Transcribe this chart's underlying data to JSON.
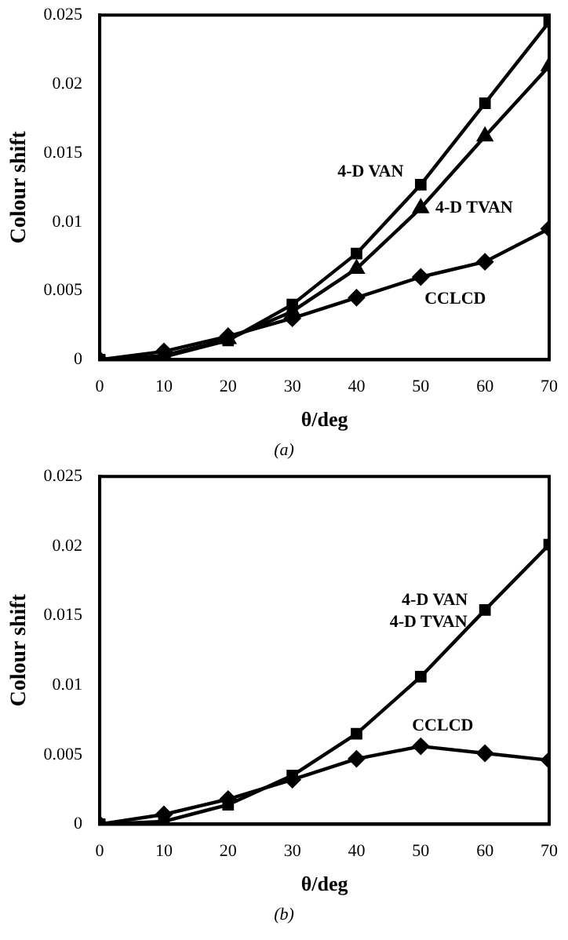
{
  "chart_data": [
    {
      "type": "line",
      "xlabel": "θ/deg",
      "ylabel": "Colour shift",
      "x": [
        0,
        10,
        20,
        30,
        40,
        50,
        60,
        70
      ],
      "xlim": [
        0,
        70
      ],
      "xticks": [
        0,
        10,
        20,
        30,
        40,
        50,
        60,
        70
      ],
      "ylim": [
        0,
        0.025
      ],
      "yticks": [
        0,
        0.005,
        0.01,
        0.015,
        0.02,
        0.025
      ],
      "grid": false,
      "legend": false,
      "series": [
        {
          "name": "4-D VAN",
          "color": "#000000",
          "marker": "square",
          "values": [
            0,
            0.0002,
            0.0014,
            0.004,
            0.0077,
            0.0127,
            0.0186,
            0.0245
          ]
        },
        {
          "name": "4-D TVAN",
          "color": "#000000",
          "marker": "triangle",
          "values": [
            0,
            0.0003,
            0.0015,
            0.0035,
            0.0066,
            0.011,
            0.0162,
            0.0213
          ]
        },
        {
          "name": "CCLCD",
          "color": "#000000",
          "marker": "diamond",
          "values": [
            0,
            0.0006,
            0.0017,
            0.003,
            0.0045,
            0.006,
            0.0071,
            0.0095
          ]
        }
      ],
      "annotations": [
        "(a)"
      ]
    },
    {
      "type": "line",
      "xlabel": "θ/deg",
      "ylabel": "Colour shift",
      "x": [
        0,
        10,
        20,
        30,
        40,
        50,
        60,
        70
      ],
      "xlim": [
        0,
        70
      ],
      "xticks": [
        0,
        10,
        20,
        30,
        40,
        50,
        60,
        70
      ],
      "ylim": [
        0,
        0.025
      ],
      "yticks": [
        0,
        0.005,
        0.01,
        0.015,
        0.02,
        0.025
      ],
      "grid": false,
      "legend": false,
      "series": [
        {
          "name": "4-D VAN",
          "color": "#000000",
          "marker": "square",
          "values": [
            0,
            0.0002,
            0.0014,
            0.0035,
            0.0065,
            0.0106,
            0.0154,
            0.0201
          ]
        },
        {
          "name": "4-D TVAN",
          "color": "#000000",
          "values": [
            null,
            null,
            null,
            null,
            null,
            null,
            null,
            null
          ]
        },
        {
          "name": "CCLCD",
          "color": "#000000",
          "marker": "diamond",
          "values": [
            0,
            0.0007,
            0.0018,
            0.0032,
            0.0047,
            0.0056,
            0.0051,
            0.0046
          ]
        }
      ],
      "annotations": [
        "(b)"
      ]
    }
  ]
}
